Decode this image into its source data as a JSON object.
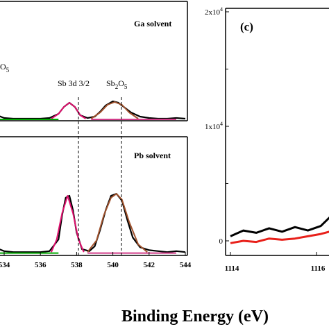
{
  "figure": {
    "xlabel": "Binding Energy (eV)"
  },
  "chart_data": [
    {
      "type": "line",
      "panel": "top-middle",
      "annotation": "Ga solvent",
      "x_ticks": [],
      "xlim": [
        532.8,
        544
      ],
      "series": [
        {
          "color": "#000000",
          "x": [
            532.8,
            533.2,
            533.6,
            534,
            534.5,
            535,
            535.5,
            536,
            536.5,
            537,
            537.3,
            537.6,
            537.9,
            538.2,
            538.6,
            539,
            539.3,
            539.6,
            540,
            540.3,
            540.6,
            541,
            541.5,
            542,
            542.5,
            543,
            543.5,
            544
          ],
          "y": [
            0.32,
            0.18,
            0.08,
            0.04,
            0.03,
            0.03,
            0.03,
            0.03,
            0.04,
            0.1,
            0.2,
            0.26,
            0.2,
            0.08,
            0.04,
            0.06,
            0.13,
            0.22,
            0.28,
            0.26,
            0.2,
            0.12,
            0.06,
            0.04,
            0.03,
            0.03,
            0.04,
            0.03
          ]
        },
        {
          "color": "#e0106e",
          "x": [
            536.6,
            537.0,
            537.3,
            537.6,
            537.9,
            538.2,
            538.5
          ],
          "y": [
            0.03,
            0.1,
            0.2,
            0.26,
            0.2,
            0.08,
            0.03
          ]
        },
        {
          "color": "#a0522d",
          "x": [
            538.8,
            539.3,
            539.7,
            540.1,
            540.5,
            540.9,
            541.4
          ],
          "y": [
            0.03,
            0.12,
            0.23,
            0.27,
            0.23,
            0.12,
            0.03
          ]
        },
        {
          "color": "#d23c8a",
          "x": [
            538.8,
            539.5,
            540.5,
            541.5,
            542.5,
            543.5
          ],
          "y": [
            0.02,
            0.02,
            0.02,
            0.02,
            0.02,
            0.02
          ]
        },
        {
          "color": "#00aa00",
          "x": [
            532.8,
            534,
            535,
            536,
            537
          ],
          "y": [
            0.02,
            0.02,
            0.02,
            0.02,
            0.02
          ]
        }
      ],
      "peak_labels": [
        "Sb 3d 3/2",
        "Sb",
        "2",
        "O",
        "5"
      ],
      "cut_label_left": "O",
      "cut_label_sub": "5"
    },
    {
      "type": "line",
      "panel": "bottom-middle",
      "annotation": "Pb solvent",
      "x_ticks": [
        "534",
        "536",
        "538",
        "540",
        "542",
        "544"
      ],
      "xlim": [
        532.8,
        544
      ],
      "series": [
        {
          "color": "#000000",
          "x": [
            532.8,
            533.2,
            533.6,
            534,
            534.5,
            535,
            535.5,
            536,
            536.5,
            537,
            537.2,
            537.4,
            537.6,
            537.8,
            538,
            538.3,
            538.7,
            539,
            539.3,
            539.6,
            539.9,
            540.2,
            540.5,
            540.8,
            541.1,
            541.5,
            542,
            542.5,
            543,
            543.5,
            544
          ],
          "y": [
            0.4,
            0.2,
            0.06,
            0.03,
            0.02,
            0.02,
            0.02,
            0.02,
            0.03,
            0.15,
            0.4,
            0.58,
            0.6,
            0.45,
            0.22,
            0.05,
            0.03,
            0.08,
            0.25,
            0.45,
            0.6,
            0.62,
            0.55,
            0.35,
            0.17,
            0.07,
            0.04,
            0.03,
            0.02,
            0.03,
            0.02
          ]
        },
        {
          "color": "#e0106e",
          "x": [
            536.6,
            536.9,
            537.2,
            537.5,
            537.8,
            538.1,
            538.4
          ],
          "y": [
            0.02,
            0.15,
            0.42,
            0.6,
            0.42,
            0.15,
            0.02
          ]
        },
        {
          "color": "#a0522d",
          "x": [
            538.6,
            539.1,
            539.5,
            539.9,
            540.2,
            540.5,
            540.9,
            541.4,
            541.9
          ],
          "y": [
            0.02,
            0.14,
            0.4,
            0.58,
            0.62,
            0.56,
            0.33,
            0.1,
            0.02
          ]
        },
        {
          "color": "#d23c8a",
          "x": [
            538.6,
            539.5,
            540.5,
            541.5,
            542.5,
            543.5
          ],
          "y": [
            0.01,
            0.01,
            0.01,
            0.01,
            0.01,
            0.01
          ]
        },
        {
          "color": "#00aa00",
          "x": [
            532.8,
            534,
            535,
            536,
            537
          ],
          "y": [
            0.01,
            0.01,
            0.01,
            0.01,
            0.01
          ]
        }
      ]
    },
    {
      "type": "line",
      "panel": "right",
      "annotation": "(c)",
      "x_ticks": [
        "1114",
        "1116"
      ],
      "y_ticks": [
        "0",
        "1x10",
        "2x10"
      ],
      "y_tick_exp": "4",
      "xlim": [
        1114,
        1117.5
      ],
      "ylim": [
        -2000,
        20000
      ],
      "series": [
        {
          "color": "#000000",
          "x": [
            1114,
            1114.3,
            1114.6,
            1114.9,
            1115.2,
            1115.5,
            1115.8,
            1116.1,
            1116.4,
            1116.7,
            1117,
            1117.3,
            1117.5
          ],
          "y": [
            400,
            900,
            700,
            1100,
            800,
            1200,
            900,
            1300,
            2400,
            3000,
            3800,
            5500,
            7600
          ]
        },
        {
          "color": "#e8201a",
          "x": [
            1114,
            1114.3,
            1114.6,
            1114.9,
            1115.2,
            1115.5,
            1115.8,
            1116.1,
            1116.4,
            1116.7,
            1117,
            1117.3,
            1117.5
          ],
          "y": [
            -200,
            0,
            -100,
            200,
            100,
            200,
            400,
            600,
            900,
            1500,
            2100,
            2800,
            3500
          ]
        }
      ]
    }
  ]
}
